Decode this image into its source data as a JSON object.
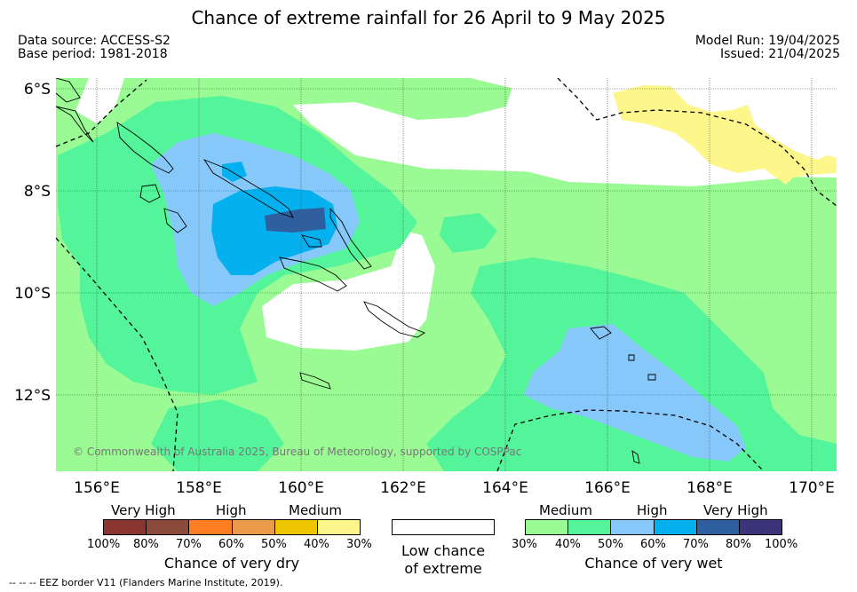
{
  "title": "Chance of extreme rainfall for 26 April to 9 May 2025",
  "data_source": "Data source: ACCESS-S2",
  "base_period": "Base period: 1981-2018",
  "model_run": "Model Run: 19/04/2025",
  "issued": "Issued: 21/04/2025",
  "lat_labels": [
    "6°S",
    "8°S",
    "10°S",
    "12°S"
  ],
  "lon_labels": [
    "156°E",
    "158°E",
    "160°E",
    "162°E",
    "164°E",
    "166°E",
    "168°E",
    "170°E"
  ],
  "copyright": "© Commonwealth of Australia 2025, Bureau of Meteorology, supported by COSPPac",
  "colors": {
    "wet_30_40": "#9afa94",
    "wet_40_50": "#54f59a",
    "wet_50_60": "#87c8fb",
    "wet_60_70": "#04b1ee",
    "wet_70_80": "#305fa0",
    "wet_80_100": "#3b347a",
    "dry_100_80": "#8b3530",
    "dry_80_70": "#8b4a3a",
    "dry_70_60": "#fe7f21",
    "dry_60_50": "#eb9a4a",
    "dry_50_40": "#efc500",
    "dry_40_30": "#fdf68b",
    "low": "#ffffff"
  },
  "legend": {
    "dry": {
      "categories": [
        "Very High",
        "High",
        "Medium"
      ],
      "ticks": [
        "100%",
        "80%",
        "70%",
        "60%",
        "50%",
        "40%",
        "30%"
      ],
      "caption": "Chance of very dry"
    },
    "low": {
      "caption_line1": "Low chance",
      "caption_line2": "of extreme"
    },
    "wet": {
      "categories": [
        "Medium",
        "High",
        "Very High"
      ],
      "ticks": [
        "30%",
        "40%",
        "50%",
        "60%",
        "70%",
        "80%",
        "100%"
      ],
      "caption": "Chance of very wet"
    }
  },
  "footnote": "--  --  -- EEZ border V11 (Flanders Marine Institute, 2019)."
}
